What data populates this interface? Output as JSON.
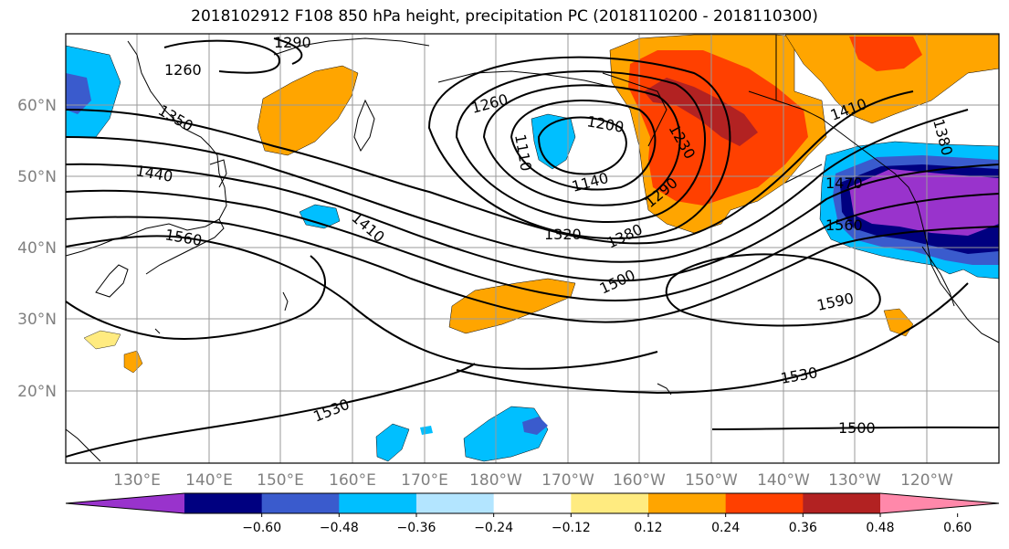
{
  "title": "2018102912 F108 850 hPa height, precipitation PC (2018110200 - 2018110300)",
  "lat_labels": [
    "20°N",
    "30°N",
    "40°N",
    "50°N",
    "60°N"
  ],
  "lon_labels": [
    "130°E",
    "140°E",
    "150°E",
    "160°E",
    "170°E",
    "180°W",
    "170°W",
    "160°W",
    "150°W",
    "140°W",
    "130°W",
    "120°W"
  ],
  "contour_labels": [
    "1260",
    "1290",
    "1350",
    "1440",
    "1560",
    "1260",
    "1200",
    "1110",
    "1140",
    "1230",
    "1290",
    "1320",
    "1380",
    "1410",
    "1500",
    "1590",
    "1530",
    "1530",
    "1500",
    "1410",
    "1470",
    "1560",
    "1380"
  ],
  "colorbar": {
    "ticks": [
      "−0.60",
      "−0.48",
      "−0.36",
      "−0.24",
      "−0.12",
      "0.12",
      "0.24",
      "0.36",
      "0.48",
      "0.60"
    ],
    "colors": [
      "#9933cc",
      "#000080",
      "#3a5bcd",
      "#00bfff",
      "#b3e5ff",
      "#ffffff",
      "#ffeb80",
      "#ffa500",
      "#ff4000",
      "#b22222",
      "#ff88aa"
    ]
  }
}
